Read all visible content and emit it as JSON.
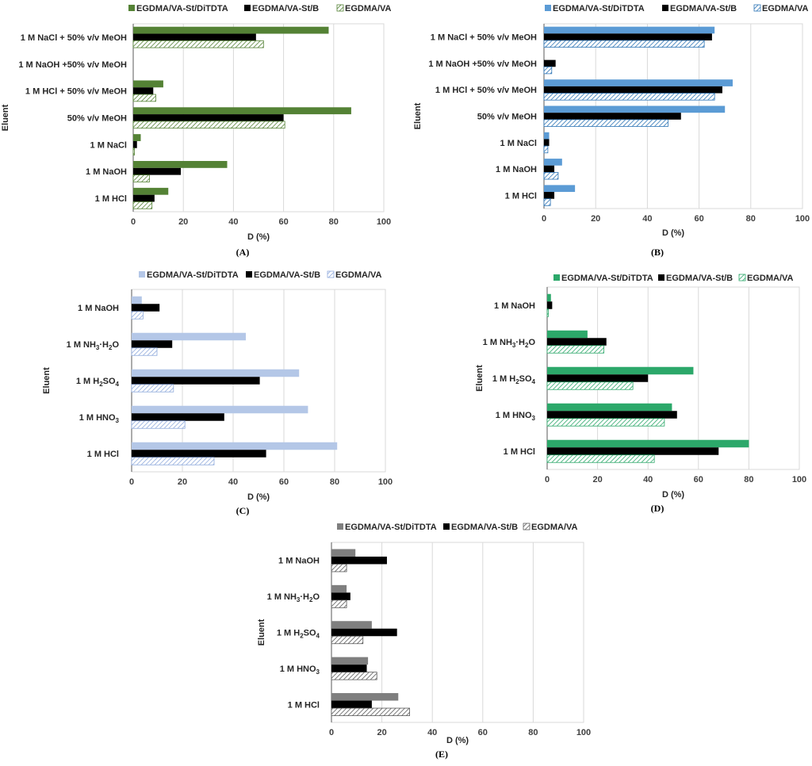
{
  "chart_data": [
    {
      "panel": "(A)",
      "type": "bar",
      "orientation": "horizontal",
      "ylabel": "Eluent",
      "xlabel": "D (%)",
      "xlim": [
        0,
        100
      ],
      "xticks": [
        "0",
        "20",
        "40",
        "60",
        "80",
        "100"
      ],
      "grid": true,
      "legend": "top",
      "colors": {
        "s1": "#548235",
        "s2": "#000000",
        "s3": "#548235"
      },
      "categories": [
        "1 M NaCl + 50% v/v MeOH",
        "1 M NaOH +50% v/v MeOH",
        "1 M HCl + 50% v/v MeOH",
        "50% v/v MeOH",
        "1 M NaCl",
        "1 M NaOH",
        "1 M HCl"
      ],
      "series": [
        {
          "name": "EGDMA/VA-St/DiTDTA",
          "style": "solid",
          "values": [
            78,
            0,
            12,
            87,
            3,
            37.5,
            14
          ]
        },
        {
          "name": "EGDMA/VA-St/B",
          "style": "solid",
          "values": [
            49,
            0,
            8,
            60,
            1.5,
            19,
            8.5
          ]
        },
        {
          "name": "EGDMA/VA",
          "style": "hatch",
          "values": [
            52,
            0,
            9,
            60.5,
            0.5,
            6.5,
            7.5
          ]
        }
      ]
    },
    {
      "panel": "(B)",
      "type": "bar",
      "orientation": "horizontal",
      "ylabel": "Eluent",
      "xlabel": "D (%)",
      "xlim": [
        0,
        100
      ],
      "xticks": [
        "0",
        "20",
        "40",
        "60",
        "80",
        "100"
      ],
      "grid": true,
      "legend": "top",
      "colors": {
        "s1": "#5b9bd5",
        "s2": "#000000",
        "s3": "#2e75b6"
      },
      "categories": [
        "1 M NaCl + 50% v/v MeOH",
        "1 M NaOH +50% v/v MeOH",
        "1 M HCl + 50% v/v MeOH",
        "50% v/v MeOH",
        "1 M NaCl",
        "1 M NaOH",
        "1 M HCl"
      ],
      "series": [
        {
          "name": "EGDMA/VA-St/DiTDTA",
          "style": "solid",
          "values": [
            66,
            0,
            73,
            70,
            2,
            7,
            12
          ]
        },
        {
          "name": "EGDMA/VA-St/B",
          "style": "solid",
          "values": [
            65,
            4.5,
            69,
            53,
            2,
            4,
            4
          ]
        },
        {
          "name": "EGDMA/VA",
          "style": "hatch",
          "values": [
            62,
            3,
            66,
            48,
            1.5,
            5.5,
            2.5
          ]
        }
      ]
    },
    {
      "panel": "(C)",
      "type": "bar",
      "orientation": "horizontal",
      "ylabel": "Eluent",
      "xlabel": "D (%)",
      "xlim": [
        0,
        100
      ],
      "xticks": [
        "0",
        "20",
        "40",
        "60",
        "80",
        "100"
      ],
      "grid": true,
      "legend": "top",
      "colors": {
        "s1": "#b4c7e7",
        "s2": "#000000",
        "s3": "#8faadc"
      },
      "categories": [
        "1 M NaOH",
        "1 M NH3·H2O",
        "1 M H2SO4",
        "1 M HNO3",
        "1 M HCl"
      ],
      "category_labels": [
        {
          "base": "1 M NaOH",
          "sub": "",
          "tail": ""
        },
        {
          "base": "1 M NH",
          "sub": "3",
          "tail": "·H",
          "sub2": "2",
          "tail2": "O"
        },
        {
          "base": "1 M H",
          "sub": "2",
          "tail": "SO",
          "sub2": "4",
          "tail2": ""
        },
        {
          "base": "1 M HNO",
          "sub": "3",
          "tail": ""
        },
        {
          "base": "1 M HCl",
          "sub": "",
          "tail": ""
        }
      ],
      "series": [
        {
          "name": "EGDMA/VA-St/DiTDTA",
          "style": "solid",
          "values": [
            4,
            45,
            66,
            69.5,
            81
          ]
        },
        {
          "name": "EGDMA/VA-St/B",
          "style": "solid",
          "values": [
            11,
            16,
            50.5,
            36.5,
            53
          ]
        },
        {
          "name": "EGDMA/VA",
          "style": "hatch",
          "values": [
            4.5,
            10,
            16.5,
            21,
            32.5
          ]
        }
      ]
    },
    {
      "panel": "(D)",
      "type": "bar",
      "orientation": "horizontal",
      "ylabel": "Eluent",
      "xlabel": "D (%)",
      "xlim": [
        0,
        100
      ],
      "xticks": [
        "0",
        "20",
        "40",
        "60",
        "80",
        "100"
      ],
      "grid": true,
      "legend": "top",
      "colors": {
        "s1": "#2ca86a",
        "s2": "#000000",
        "s3": "#2ca86a"
      },
      "categories": [
        "1 M NaOH",
        "1 M NH3·H2O",
        "1 M H2SO4",
        "1 M HNO3",
        "1 M HCl"
      ],
      "category_labels": [
        {
          "base": "1 M NaOH",
          "sub": "",
          "tail": ""
        },
        {
          "base": "1 M NH",
          "sub": "3",
          "tail": "·H",
          "sub2": "2",
          "tail2": "O"
        },
        {
          "base": "1 M H",
          "sub": "2",
          "tail": "SO",
          "sub2": "4",
          "tail2": ""
        },
        {
          "base": "1 M HNO",
          "sub": "3",
          "tail": ""
        },
        {
          "base": "1 M HCl",
          "sub": "",
          "tail": ""
        }
      ],
      "series": [
        {
          "name": "EGDMA/VA-St/DiTDTA",
          "style": "solid",
          "values": [
            1.5,
            16,
            58,
            49.5,
            80
          ]
        },
        {
          "name": "EGDMA/VA-St/B",
          "style": "solid",
          "values": [
            2,
            23.5,
            40,
            51.5,
            68
          ]
        },
        {
          "name": "EGDMA/VA",
          "style": "hatch",
          "values": [
            0.5,
            22.5,
            34,
            46.5,
            42.5
          ]
        }
      ]
    },
    {
      "panel": "(E)",
      "type": "bar",
      "orientation": "horizontal",
      "ylabel": "Eluent",
      "xlabel": "D (%)",
      "xlim": [
        0,
        100
      ],
      "xticks": [
        "0",
        "20",
        "40",
        "60",
        "80",
        "100"
      ],
      "grid": true,
      "legend": "top",
      "colors": {
        "s1": "#7f7f7f",
        "s2": "#000000",
        "s3": "#595959"
      },
      "categories": [
        "1 M NaOH",
        "1 M NH3·H2O",
        "1 M H2SO4",
        "1 M HNO3",
        "1 M HCl"
      ],
      "category_labels": [
        {
          "base": "1 M NaOH",
          "sub": "",
          "tail": ""
        },
        {
          "base": "1 M NH",
          "sub": "3",
          "tail": "·H",
          "sub2": "2",
          "tail2": "O"
        },
        {
          "base": "1 M H",
          "sub": "2",
          "tail": "SO",
          "sub2": "4",
          "tail2": ""
        },
        {
          "base": "1 M HNO",
          "sub": "3",
          "tail": ""
        },
        {
          "base": "1 M HCl",
          "sub": "",
          "tail": ""
        }
      ],
      "series": [
        {
          "name": "EGDMA/VA-St/DiTDTA",
          "style": "solid",
          "values": [
            9.5,
            6,
            16,
            14.5,
            26.5
          ]
        },
        {
          "name": "EGDMA/VA-St/B",
          "style": "solid",
          "values": [
            22,
            7.5,
            26,
            14,
            16
          ]
        },
        {
          "name": "EGDMA/VA",
          "style": "hatch",
          "values": [
            6,
            6,
            12.5,
            18,
            31
          ]
        }
      ]
    }
  ]
}
